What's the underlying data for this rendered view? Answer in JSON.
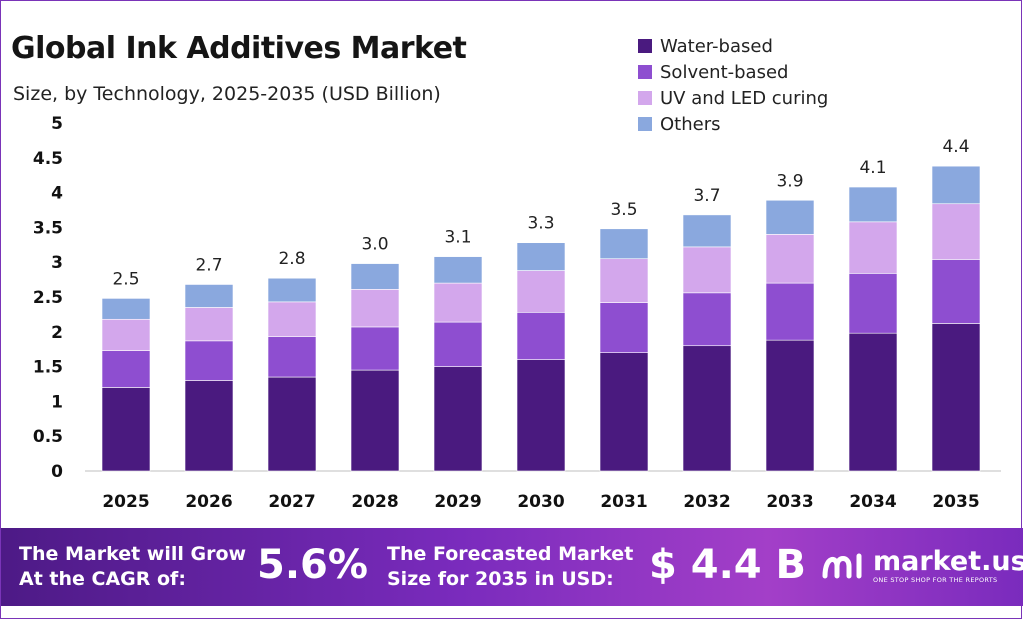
{
  "header": {
    "title": "Global Ink Additives Market",
    "subtitle": "Size, by Technology, 2025-2035 (USD Billion)"
  },
  "legend": {
    "items": [
      {
        "label": "Water-based",
        "color": "#4a1a7f"
      },
      {
        "label": "Solvent-based",
        "color": "#8e4ed0"
      },
      {
        "label": "UV and LED curing",
        "color": "#d3a7ec"
      },
      {
        "label": "Others",
        "color": "#8aa8de"
      }
    ]
  },
  "chart_data": {
    "type": "bar",
    "stacked": true,
    "categories": [
      "2025",
      "2026",
      "2027",
      "2028",
      "2029",
      "2030",
      "2031",
      "2032",
      "2033",
      "2034",
      "2035"
    ],
    "series": [
      {
        "name": "Water-based",
        "color": "#4a1a7f",
        "values": [
          1.2,
          1.3,
          1.35,
          1.45,
          1.5,
          1.6,
          1.7,
          1.8,
          1.88,
          1.98,
          2.12
        ]
      },
      {
        "name": "Solvent-based",
        "color": "#8e4ed0",
        "values": [
          0.53,
          0.57,
          0.58,
          0.62,
          0.64,
          0.68,
          0.72,
          0.76,
          0.82,
          0.86,
          0.92
        ]
      },
      {
        "name": "UV and LED curing",
        "color": "#d3a7ec",
        "values": [
          0.45,
          0.48,
          0.5,
          0.54,
          0.56,
          0.6,
          0.63,
          0.66,
          0.7,
          0.74,
          0.8
        ]
      },
      {
        "name": "Others",
        "color": "#8aa8de",
        "values": [
          0.3,
          0.33,
          0.34,
          0.37,
          0.38,
          0.4,
          0.43,
          0.46,
          0.49,
          0.5,
          0.54
        ]
      }
    ],
    "totals": [
      "2.5",
      "2.7",
      "2.8",
      "3.0",
      "3.1",
      "3.3",
      "3.5",
      "3.7",
      "3.9",
      "4.1",
      "4.4"
    ],
    "yticks": [
      "0",
      "0.5",
      "1",
      "1.5",
      "2",
      "2.5",
      "3",
      "3.5",
      "4",
      "4.5",
      "5"
    ],
    "ylim": [
      0,
      5
    ],
    "grid": false,
    "legend_position": "top-right"
  },
  "footer": {
    "cagr_label_line1": "The Market will Grow",
    "cagr_label_line2": "At the CAGR of:",
    "cagr_value": "5.6%",
    "forecast_label_line1": "The Forecasted Market",
    "forecast_label_line2": "Size for 2035 in USD:",
    "forecast_value": "$ 4.4 B",
    "brand_name": "market.us",
    "brand_tagline": "ONE STOP SHOP FOR THE REPORTS"
  }
}
